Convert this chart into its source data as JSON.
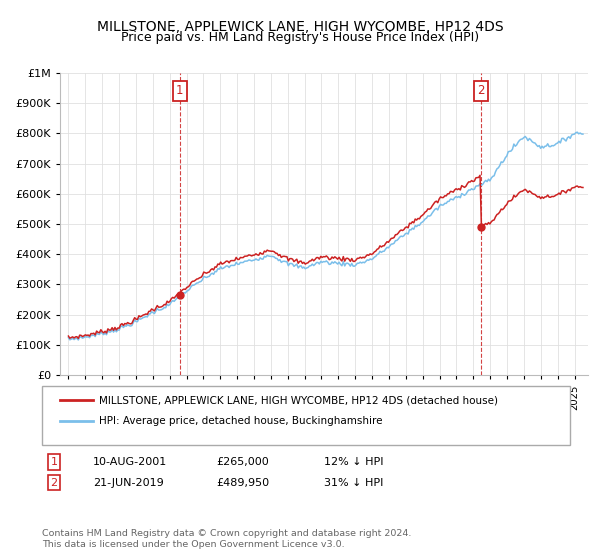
{
  "title": "MILLSTONE, APPLEWICK LANE, HIGH WYCOMBE, HP12 4DS",
  "subtitle": "Price paid vs. HM Land Registry's House Price Index (HPI)",
  "legend_line1": "MILLSTONE, APPLEWICK LANE, HIGH WYCOMBE, HP12 4DS (detached house)",
  "legend_line2": "HPI: Average price, detached house, Buckinghamshire",
  "annotation1_label": "1",
  "annotation1_date": "10-AUG-2001",
  "annotation1_price": "£265,000",
  "annotation1_hpi": "12% ↓ HPI",
  "annotation2_label": "2",
  "annotation2_date": "21-JUN-2019",
  "annotation2_price": "£489,950",
  "annotation2_hpi": "31% ↓ HPI",
  "footer": "Contains HM Land Registry data © Crown copyright and database right 2024.\nThis data is licensed under the Open Government Licence v3.0.",
  "hpi_color": "#7bbfea",
  "price_color": "#cc2222",
  "vline_color": "#cc2222",
  "background_color": "#ffffff",
  "ylim": [
    0,
    1000000
  ],
  "ytick_labels": [
    "£0",
    "£100K",
    "£200K",
    "£300K",
    "£400K",
    "£500K",
    "£600K",
    "£700K",
    "£800K",
    "£900K",
    "£1M"
  ],
  "yticks": [
    0,
    100000,
    200000,
    300000,
    400000,
    500000,
    600000,
    700000,
    800000,
    900000,
    1000000
  ],
  "sale1_x": 2001.6,
  "sale1_y": 265000,
  "sale2_x": 2019.46,
  "sale2_y": 489950,
  "xmin": 1994.5,
  "xmax": 2025.8
}
